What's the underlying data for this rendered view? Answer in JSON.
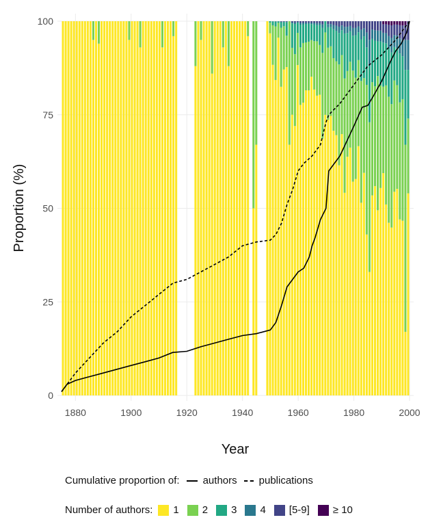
{
  "chart_data": {
    "type": "bar",
    "xlabel": "Year",
    "ylabel": "Proportion (%)",
    "xlim": [
      1875,
      2000
    ],
    "ylim": [
      0,
      100
    ],
    "x_ticks": [
      1880,
      1900,
      1920,
      1940,
      1960,
      1980,
      2000
    ],
    "y_ticks": [
      0,
      25,
      50,
      75,
      100
    ],
    "grid": true,
    "legend_position": "bottom",
    "colors": {
      "1": "#fde725",
      "2": "#7ad151",
      "3": "#22a884",
      "4": "#2a788e",
      "5-9": "#414487",
      "10+": "#440154",
      "line": "#000000"
    },
    "missing_years": [
      1917,
      1918,
      1919,
      1920,
      1921,
      1922,
      1943,
      1946,
      1947,
      1948
    ],
    "stacked_bars": {
      "categories": [
        "1",
        "2",
        "3",
        "4",
        "[5-9]",
        "≥ 10"
      ],
      "overrides": [
        {
          "year": 1886,
          "values": [
            95,
            5,
            0,
            0,
            0,
            0
          ]
        },
        {
          "year": 1888,
          "values": [
            94,
            6,
            0,
            0,
            0,
            0
          ]
        },
        {
          "year": 1899,
          "values": [
            95,
            5,
            0,
            0,
            0,
            0
          ]
        },
        {
          "year": 1903,
          "values": [
            93,
            7,
            0,
            0,
            0,
            0
          ]
        },
        {
          "year": 1911,
          "values": [
            93,
            7,
            0,
            0,
            0,
            0
          ]
        },
        {
          "year": 1915,
          "values": [
            96,
            4,
            0,
            0,
            0,
            0
          ]
        },
        {
          "year": 1923,
          "values": [
            88,
            12,
            0,
            0,
            0,
            0
          ]
        },
        {
          "year": 1925,
          "values": [
            95,
            5,
            0,
            0,
            0,
            0
          ]
        },
        {
          "year": 1929,
          "values": [
            86,
            14,
            0,
            0,
            0,
            0
          ]
        },
        {
          "year": 1933,
          "values": [
            93,
            7,
            0,
            0,
            0,
            0
          ]
        },
        {
          "year": 1935,
          "values": [
            88,
            12,
            0,
            0,
            0,
            0
          ]
        },
        {
          "year": 1942,
          "values": [
            96,
            4,
            0,
            0,
            0,
            0
          ]
        },
        {
          "year": 1944,
          "values": [
            50,
            50,
            0,
            0,
            0,
            0
          ]
        },
        {
          "year": 1945,
          "values": [
            67,
            33,
            0,
            0,
            0,
            0
          ]
        },
        {
          "year": 1957,
          "values": [
            67,
            33,
            0,
            0,
            0,
            0
          ]
        },
        {
          "year": 1970,
          "values": [
            75,
            22,
            3,
            0,
            0,
            0
          ]
        },
        {
          "year": 1985,
          "values": [
            43,
            40,
            10,
            4,
            3,
            0
          ]
        },
        {
          "year": 1986,
          "values": [
            33,
            40,
            15,
            7,
            5,
            0
          ]
        },
        {
          "year": 1999,
          "values": [
            17,
            50,
            20,
            8,
            4,
            1
          ]
        },
        {
          "year": 2000,
          "values": [
            54,
            20,
            13,
            8,
            5,
            0
          ]
        }
      ]
    },
    "series": [
      {
        "name": "authors",
        "style": "solid",
        "x": [
          1875,
          1877,
          1880,
          1885,
          1890,
          1895,
          1900,
          1905,
          1910,
          1915,
          1920,
          1925,
          1930,
          1935,
          1940,
          1945,
          1950,
          1952,
          1954,
          1956,
          1958,
          1960,
          1962,
          1964,
          1965,
          1966,
          1968,
          1970,
          1971,
          1975,
          1980,
          1983,
          1985,
          1987,
          1990,
          1993,
          1995,
          1997,
          1999,
          2000
        ],
        "values": [
          1,
          3,
          4,
          5,
          6,
          7,
          8,
          9,
          10,
          11.5,
          11.8,
          13,
          14,
          15,
          16,
          16.5,
          17.5,
          19.5,
          24,
          29,
          31,
          33,
          34,
          37,
          40,
          42,
          47,
          50,
          60,
          64,
          72,
          77,
          77.5,
          80,
          84,
          89,
          92,
          94,
          97,
          100
        ]
      },
      {
        "name": "publications",
        "style": "dashed",
        "x": [
          1875,
          1880,
          1885,
          1890,
          1895,
          1900,
          1905,
          1910,
          1915,
          1920,
          1925,
          1930,
          1935,
          1940,
          1945,
          1950,
          1952,
          1954,
          1956,
          1958,
          1960,
          1962,
          1965,
          1968,
          1970,
          1971,
          1975,
          1980,
          1985,
          1990,
          1995,
          2000
        ],
        "values": [
          1,
          6,
          10,
          14,
          17,
          21,
          24,
          27,
          30,
          31,
          33,
          35,
          37,
          40,
          41,
          41.5,
          43,
          46,
          51,
          55,
          60,
          62,
          64,
          67,
          73,
          75,
          78,
          83,
          88,
          91,
          95,
          100
        ]
      }
    ]
  },
  "legend": {
    "cumulative_label": "Cumulative proportion of:",
    "authors_label": "authors",
    "publications_label": "publications",
    "number_label": "Number of authors:",
    "cat1": "1",
    "cat2": "2",
    "cat3": "3",
    "cat4": "4",
    "cat5": "[5-9]",
    "cat6": "≥ 10"
  }
}
